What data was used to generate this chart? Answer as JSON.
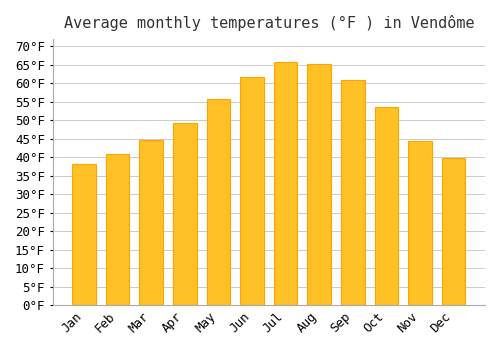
{
  "title": "Average monthly temperatures (°F ) in Vendôme",
  "months": [
    "Jan",
    "Feb",
    "Mar",
    "Apr",
    "May",
    "Jun",
    "Jul",
    "Aug",
    "Sep",
    "Oct",
    "Nov",
    "Dec"
  ],
  "values": [
    38.3,
    40.8,
    44.8,
    49.3,
    55.8,
    61.7,
    65.8,
    65.3,
    61.0,
    53.6,
    44.4,
    39.7
  ],
  "bar_color": "#FFC125",
  "bar_edge_color": "#FFA500",
  "background_color": "#ffffff",
  "grid_color": "#cccccc",
  "ylim": [
    0,
    72
  ],
  "ytick_step": 5,
  "title_fontsize": 11,
  "tick_fontsize": 9,
  "font_family": "monospace"
}
